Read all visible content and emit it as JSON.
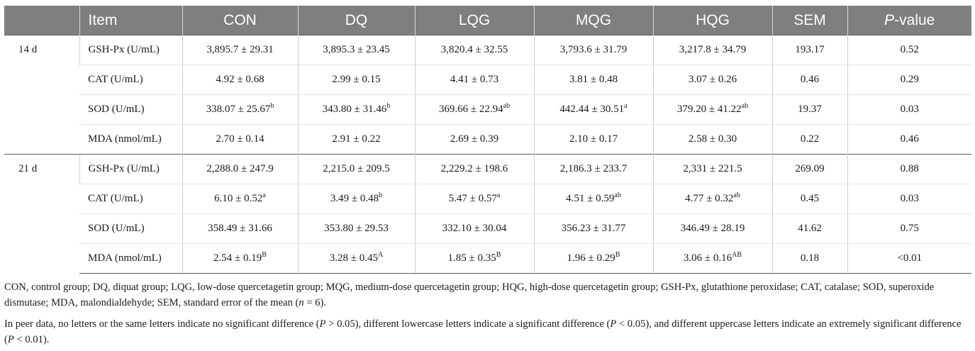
{
  "headers": [
    "Item",
    "CON",
    "DQ",
    "LQG",
    "MQG",
    "HQG",
    "SEM",
    "P",
    "-value"
  ],
  "groups": [
    {
      "label": "14 d",
      "rows": [
        {
          "item": "GSH-Px (U/mL)",
          "con": [
            "3,895.7 ± 29.31",
            ""
          ],
          "dq": [
            "3,895.3 ± 23.45",
            ""
          ],
          "lqg": [
            "3,820.4 ± 32.55",
            ""
          ],
          "mqg": [
            "3,793.6 ± 31.79",
            ""
          ],
          "hqg": [
            "3,217.8 ± 34.79",
            ""
          ],
          "sem": "193.17",
          "p": "0.52"
        },
        {
          "item": "CAT (U/mL)",
          "con": [
            "4.92 ± 0.68",
            ""
          ],
          "dq": [
            "2.99 ± 0.15",
            ""
          ],
          "lqg": [
            "4.41 ± 0.73",
            ""
          ],
          "mqg": [
            "3.81 ± 0.48",
            ""
          ],
          "hqg": [
            "3.07 ± 0.26",
            ""
          ],
          "sem": "0.46",
          "p": "0.29"
        },
        {
          "item": "SOD (U/mL)",
          "con": [
            "338.07 ± 25.67",
            "b"
          ],
          "dq": [
            "343.80 ± 31.46",
            "b"
          ],
          "lqg": [
            "369.66 ± 22.94",
            "ab"
          ],
          "mqg": [
            "442.44 ± 30.51",
            "a"
          ],
          "hqg": [
            "379.20 ± 41.22",
            "ab"
          ],
          "sem": "19.37",
          "p": "0.03"
        },
        {
          "item": "MDA (nmol/mL)",
          "con": [
            "2.70 ± 0.14",
            ""
          ],
          "dq": [
            "2.91 ± 0.22",
            ""
          ],
          "lqg": [
            "2.69 ± 0.39",
            ""
          ],
          "mqg": [
            "2.10 ± 0.17",
            ""
          ],
          "hqg": [
            "2.58 ± 0.30",
            ""
          ],
          "sem": "0.22",
          "p": "0.46"
        }
      ]
    },
    {
      "label": "21 d",
      "rows": [
        {
          "item": "GSH-Px (U/mL)",
          "con": [
            "2,288.0 ± 247.9",
            ""
          ],
          "dq": [
            "2,215.0 ± 209.5",
            ""
          ],
          "lqg": [
            "2,229.2 ± 198.6",
            ""
          ],
          "mqg": [
            "2,186.3 ± 233.7",
            ""
          ],
          "hqg": [
            "2,331 ± 221.5",
            ""
          ],
          "sem": "269.09",
          "p": "0.88"
        },
        {
          "item": "CAT (U/mL)",
          "con": [
            "6.10 ± 0.52",
            "a"
          ],
          "dq": [
            "3.49 ± 0.48",
            "b"
          ],
          "lqg": [
            "5.47 ± 0.57",
            "a"
          ],
          "mqg": [
            "4.51 ± 0.59",
            "ab"
          ],
          "hqg": [
            "4.77 ± 0.32",
            "ab"
          ],
          "sem": "0.45",
          "p": "0.03"
        },
        {
          "item": "SOD (U/mL)",
          "con": [
            "358.49 ± 31.66",
            ""
          ],
          "dq": [
            "353.80 ± 29.53",
            ""
          ],
          "lqg": [
            "332.10 ± 30.04",
            ""
          ],
          "mqg": [
            "356.23 ± 31.77",
            ""
          ],
          "hqg": [
            "346.49 ± 28.19",
            ""
          ],
          "sem": "41.62",
          "p": "0.75"
        },
        {
          "item": "MDA (nmol/mL)",
          "con": [
            "2.54 ± 0.19",
            "B"
          ],
          "dq": [
            "3.28 ± 0.45",
            "A"
          ],
          "lqg": [
            "1.85 ± 0.35",
            "B"
          ],
          "mqg": [
            "1.96 ± 0.29",
            "B"
          ],
          "hqg": [
            "3.06 ± 0.16",
            "AB"
          ],
          "sem": "0.18",
          "p": "<0.01"
        }
      ]
    }
  ],
  "footnote1": {
    "a": "CON, control group; DQ, diquat group; LQG, low-dose quercetagetin group; MQG, medium-dose quercetagetin group; HQG, high-dose quercetagetin group; GSH-Px, glutathione peroxidase; CAT, catalase; SOD, superoxide dismutase; MDA, malondialdehyde; SEM, standard error of the mean (",
    "n": "n",
    "b": " = 6)."
  },
  "footnote2": {
    "a": "In peer data, no letters or the same letters indicate no significant difference (",
    "p1": "P",
    "b": " > 0.05), different lowercase letters indicate a significant difference (",
    "p2": "P",
    "c": " < 0.05), and different uppercase letters indicate an extremely significant difference (",
    "p3": "P",
    "d": " < 0.01)."
  }
}
